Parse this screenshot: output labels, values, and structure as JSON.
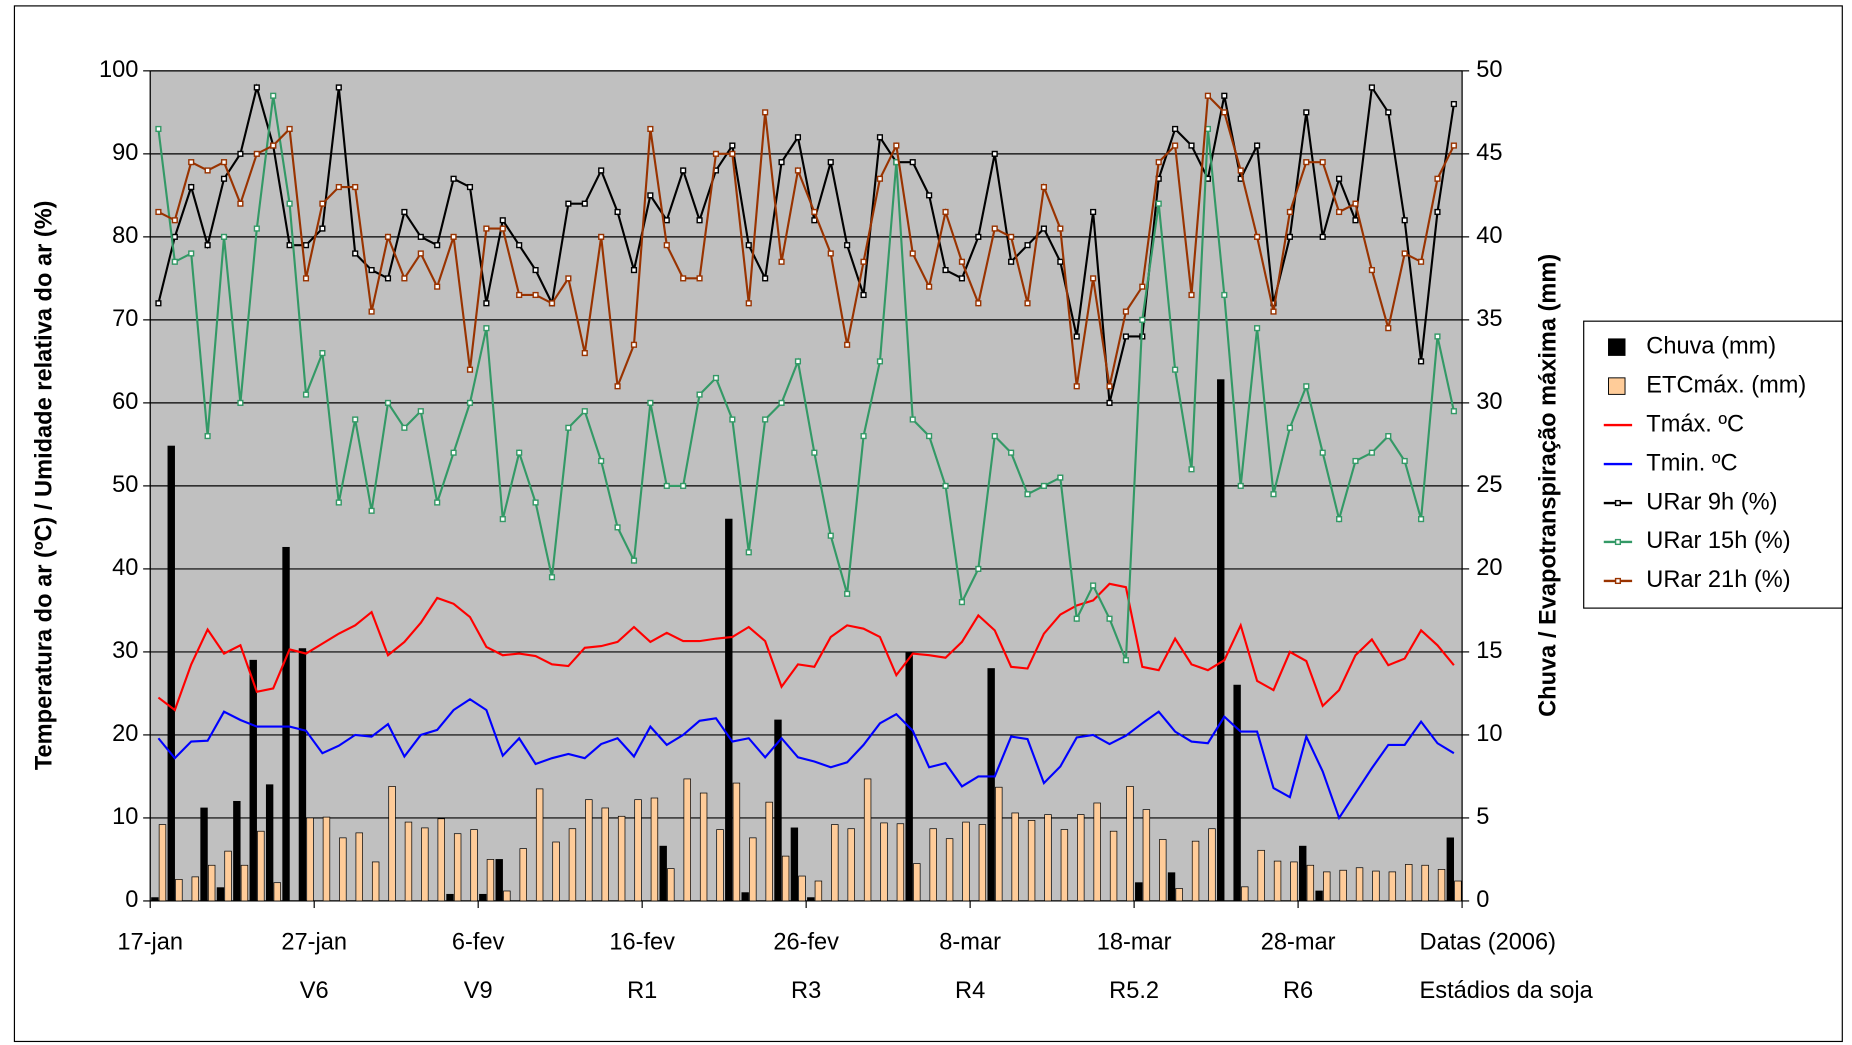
{
  "chart_data": {
    "type": "bar_line",
    "ylabel": "Temperatura do ar (ºC) / Umidade relativa do ar (%)",
    "y2label": "Chuva / Evapotranspiração máxima (mm)",
    "x_axis_label": "Datas (2006)",
    "stage_axis_label": "Estádios da soja",
    "categories": [
      "17-jan",
      null,
      null,
      null,
      null,
      null,
      null,
      null,
      null,
      null,
      "27-jan",
      null,
      null,
      null,
      null,
      null,
      null,
      null,
      null,
      null,
      "6-fev",
      null,
      null,
      null,
      null,
      null,
      null,
      null,
      null,
      null,
      "16-fev",
      null,
      null,
      null,
      null,
      null,
      null,
      null,
      null,
      null,
      "26-fev",
      null,
      null,
      null,
      null,
      null,
      null,
      null,
      null,
      null,
      "8-mar",
      null,
      null,
      null,
      null,
      null,
      null,
      null,
      null,
      null,
      "18-mar",
      null,
      null,
      null,
      null,
      null,
      null,
      null,
      null,
      null,
      "28-mar",
      null,
      null,
      null,
      null,
      null,
      null,
      null,
      null,
      null
    ],
    "stages": [
      null,
      null,
      null,
      null,
      null,
      null,
      null,
      null,
      null,
      null,
      "V6",
      null,
      null,
      null,
      null,
      null,
      null,
      null,
      null,
      null,
      "V9",
      null,
      null,
      null,
      null,
      null,
      null,
      null,
      null,
      null,
      "R1",
      null,
      null,
      null,
      null,
      null,
      null,
      null,
      null,
      null,
      "R3",
      null,
      null,
      null,
      null,
      null,
      null,
      null,
      null,
      null,
      "R4",
      null,
      null,
      null,
      null,
      null,
      null,
      null,
      null,
      null,
      "R5.2",
      null,
      null,
      null,
      null,
      null,
      null,
      null,
      null,
      null,
      "R6",
      null,
      null,
      null,
      null,
      null,
      null,
      null,
      null,
      null
    ],
    "ylim": [
      0,
      100
    ],
    "yticks": [
      0,
      10,
      20,
      30,
      40,
      50,
      60,
      70,
      80,
      90,
      100
    ],
    "y2lim": [
      0,
      50
    ],
    "y2ticks": [
      0,
      5,
      10,
      15,
      20,
      25,
      30,
      35,
      40,
      45,
      50
    ],
    "grid": true,
    "legend": "right",
    "series": [
      {
        "name": "Chuva (mm)",
        "type": "bar",
        "axis": "y2",
        "color": "#000000",
        "values": [
          0.2,
          27.4,
          0,
          5.6,
          0.8,
          6,
          14.5,
          7,
          21.3,
          15.2,
          0,
          0,
          0,
          0,
          0,
          0,
          0,
          0,
          0.4,
          0,
          0.4,
          2.5,
          0,
          0,
          0,
          0,
          0,
          0,
          0,
          0,
          0,
          3.3,
          0,
          0,
          0,
          23,
          0.5,
          0,
          10.9,
          4.4,
          0.2,
          0,
          0,
          0,
          0,
          0,
          15,
          0,
          0,
          0,
          0,
          14,
          0,
          0,
          0,
          0,
          0,
          0,
          0,
          0,
          1.1,
          0,
          1.7,
          0,
          0,
          31.4,
          13,
          0,
          0,
          0,
          3.3,
          0.6,
          0,
          0,
          0,
          0,
          0,
          0,
          0,
          3.8
        ]
      },
      {
        "name": "ETCmáx. (mm)",
        "type": "bar",
        "axis": "y2",
        "color": "#FFCC99",
        "values": [
          4.6,
          1.3,
          1.45,
          2.15,
          3,
          2.15,
          4.2,
          1.1,
          0,
          5,
          5.05,
          3.8,
          4.1,
          2.35,
          6.9,
          4.75,
          4.4,
          4.95,
          4.05,
          4.3,
          2.5,
          0.6,
          3.15,
          6.75,
          3.55,
          4.35,
          6.1,
          5.6,
          5.1,
          6.1,
          6.2,
          1.95,
          7.35,
          6.5,
          4.3,
          7.1,
          3.8,
          5.95,
          2.7,
          1.5,
          1.2,
          4.6,
          4.35,
          7.35,
          4.7,
          4.65,
          2.25,
          4.35,
          3.75,
          4.75,
          4.6,
          6.85,
          5.3,
          4.85,
          5.2,
          4.3,
          5.2,
          5.9,
          4.2,
          6.9,
          5.5,
          3.7,
          0.75,
          3.6,
          4.35,
          0,
          0.85,
          3.05,
          2.4,
          2.35,
          2.15,
          1.75,
          1.85,
          2,
          1.8,
          1.75,
          2.2,
          2.15,
          1.9,
          1.2
        ]
      },
      {
        "name": "Tmáx. ºC",
        "type": "line",
        "color": "#FF0000",
        "marker": false,
        "values": [
          24.5,
          23,
          28.5,
          32.7,
          29.8,
          30.8,
          25.2,
          25.6,
          30.3,
          29.8,
          31,
          32.2,
          33.2,
          34.8,
          29.6,
          31.2,
          33.5,
          36.5,
          35.8,
          34.2,
          30.6,
          29.6,
          29.8,
          29.5,
          28.5,
          28.3,
          30.5,
          30.7,
          31.2,
          33,
          31.2,
          32.3,
          31.3,
          31.3,
          31.6,
          31.8,
          33,
          31.3,
          25.8,
          28.5,
          28.2,
          31.8,
          33.2,
          32.8,
          31.8,
          27.2,
          29.8,
          29.6,
          29.3,
          31.2,
          34.4,
          32.6,
          28.2,
          28,
          32.2,
          34.5,
          35.6,
          36.2,
          38.2,
          37.8,
          28.2,
          27.8,
          31.6,
          28.5,
          27.8,
          29,
          33.2,
          26.5,
          25.4,
          30,
          28.9,
          23.5,
          25.4,
          29.6,
          31.5,
          28.4,
          29.2,
          32.6,
          30.8,
          28.4
        ]
      },
      {
        "name": "Tmin. ºC",
        "type": "line",
        "color": "#0000FF",
        "marker": false,
        "values": [
          19.6,
          17.2,
          19.2,
          19.3,
          22.8,
          21.8,
          21,
          21,
          21,
          20.5,
          17.8,
          18.7,
          20,
          19.8,
          21.3,
          17.4,
          20,
          20.6,
          23,
          24.3,
          23,
          17.5,
          19.6,
          16.5,
          17.2,
          17.7,
          17.2,
          18.9,
          19.6,
          17.4,
          21,
          18.8,
          20,
          21.7,
          22,
          19.2,
          19.6,
          17.3,
          19.6,
          17.3,
          16.8,
          16.1,
          16.7,
          18.8,
          21.4,
          22.5,
          20.5,
          16.1,
          16.6,
          13.8,
          15,
          15,
          19.8,
          19.5,
          14.2,
          16.2,
          19.7,
          20,
          18.9,
          19.9,
          21.4,
          22.8,
          20.4,
          19.2,
          19,
          22.2,
          20.4,
          20.4,
          13.6,
          12.5,
          19.8,
          15.6,
          10,
          13,
          16,
          18.8,
          18.8,
          21.6,
          19,
          17.8
        ]
      },
      {
        "name": "URar 9h (%)",
        "type": "line",
        "color": "#000000",
        "marker": true,
        "values": [
          72,
          80,
          86,
          79,
          87,
          90,
          98,
          91,
          79,
          79,
          81,
          98,
          78,
          76,
          75,
          83,
          80,
          79,
          87,
          86,
          72,
          82,
          79,
          76,
          72,
          84,
          84,
          88,
          83,
          76,
          85,
          82,
          88,
          82,
          88,
          91,
          79,
          75,
          89,
          92,
          82,
          89,
          79,
          73,
          92,
          89,
          89,
          85,
          76,
          75,
          80,
          90,
          77,
          79,
          81,
          77,
          68,
          83,
          60,
          68,
          68,
          87,
          93,
          91,
          87,
          97,
          87,
          91,
          72,
          80,
          95,
          80,
          87,
          82,
          98,
          95,
          82,
          65,
          83,
          96
        ]
      },
      {
        "name": "URar 15h (%)",
        "type": "line",
        "color": "#339966",
        "marker": true,
        "values": [
          93,
          77,
          78,
          56,
          80,
          60,
          81,
          97,
          84,
          61,
          66,
          48,
          58,
          47,
          60,
          57,
          59,
          48,
          54,
          60,
          69,
          46,
          54,
          48,
          39,
          57,
          59,
          53,
          45,
          41,
          60,
          50,
          50,
          61,
          63,
          58,
          42,
          58,
          60,
          65,
          54,
          44,
          37,
          56,
          65,
          89,
          58,
          56,
          50,
          36,
          40,
          56,
          54,
          49,
          50,
          51,
          34,
          38,
          34,
          29,
          70,
          84,
          64,
          52,
          93,
          73,
          50,
          69,
          49,
          57,
          62,
          54,
          46,
          53,
          54,
          56,
          53,
          46,
          68,
          59
        ]
      },
      {
        "name": "URar 21h (%)",
        "type": "line",
        "color": "#993300",
        "marker": true,
        "values": [
          83,
          82,
          89,
          88,
          89,
          84,
          90,
          91,
          93,
          75,
          84,
          86,
          86,
          71,
          80,
          75,
          78,
          74,
          80,
          64,
          81,
          81,
          73,
          73,
          72,
          75,
          66,
          80,
          62,
          67,
          93,
          79,
          75,
          75,
          90,
          90,
          72,
          95,
          77,
          88,
          83,
          78,
          67,
          77,
          87,
          91,
          78,
          74,
          83,
          77,
          72,
          81,
          80,
          72,
          86,
          81,
          62,
          75,
          62,
          71,
          74,
          89,
          91,
          73,
          97,
          95,
          88,
          80,
          71,
          83,
          89,
          89,
          83,
          84,
          76,
          69,
          78,
          77,
          87,
          91
        ]
      }
    ]
  }
}
